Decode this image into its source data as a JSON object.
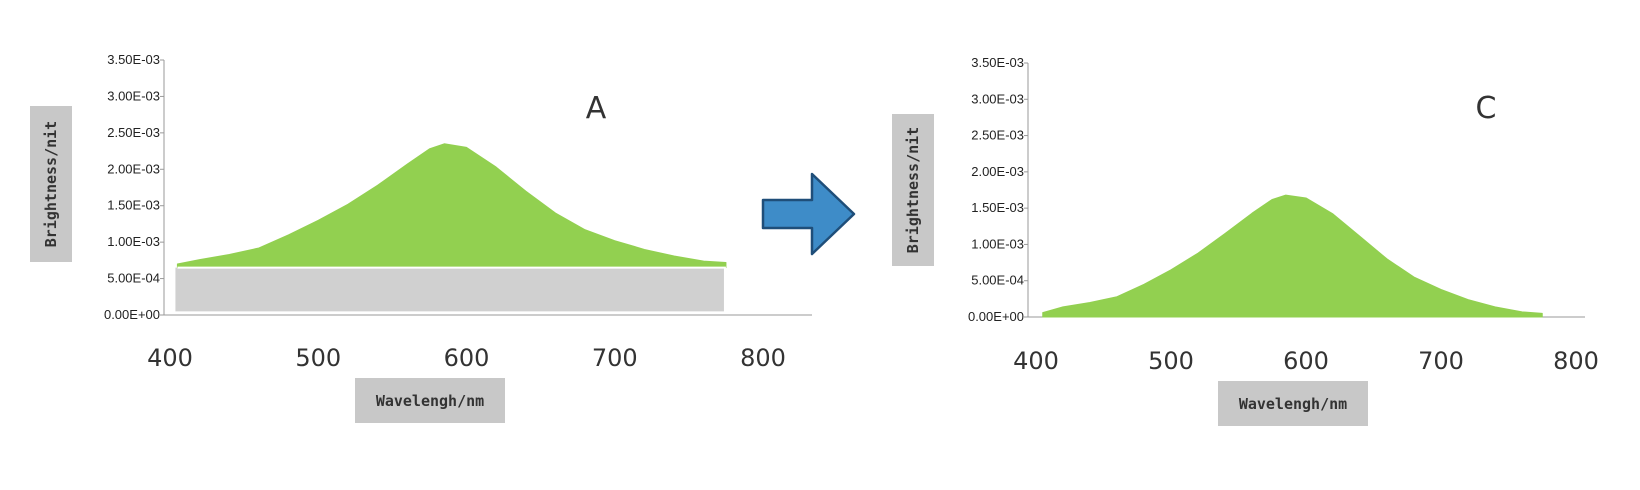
{
  "colors": {
    "fill": "#92D050",
    "label_box": "#C8C8C8",
    "baseline_band": "#D0D0D0",
    "arrow": "#3E8CC8",
    "arrow_edge": "#1F4E79",
    "axis": "#999999"
  },
  "arrow": {
    "direction": "right",
    "icon": "arrow-right-icon"
  },
  "chart_data": [
    {
      "type": "area",
      "panel_label": "A",
      "xlabel": "Wavelengh/nm",
      "ylabel": "Brightness/nit",
      "xlim": [
        400,
        800
      ],
      "ylim": [
        0,
        0.0035
      ],
      "x_ticks": [
        "400",
        "500",
        "600",
        "700",
        "800"
      ],
      "y_ticks": [
        "0.00E+00",
        "5.00E-04",
        "1.00E-03",
        "1.50E-03",
        "2.00E-03",
        "2.50E-03",
        "3.00E-03",
        "3.50E-03"
      ],
      "baseline_band": {
        "from": 5e-05,
        "to": 0.00065
      },
      "x": [
        405,
        420,
        440,
        460,
        480,
        500,
        520,
        540,
        560,
        575,
        585,
        600,
        620,
        640,
        660,
        680,
        700,
        720,
        740,
        760,
        775
      ],
      "y": [
        0.0007,
        0.00076,
        0.00083,
        0.00092,
        0.0011,
        0.0013,
        0.00152,
        0.00178,
        0.00207,
        0.00228,
        0.00235,
        0.0023,
        0.00203,
        0.0017,
        0.0014,
        0.00117,
        0.00102,
        0.0009,
        0.00081,
        0.00074,
        0.00072
      ]
    },
    {
      "type": "area",
      "panel_label": "C",
      "xlabel": "Wavelengh/nm",
      "ylabel": "Brightness/nit",
      "xlim": [
        400,
        800
      ],
      "ylim": [
        0,
        0.0035
      ],
      "x_ticks": [
        "400",
        "500",
        "600",
        "700",
        "800"
      ],
      "y_ticks": [
        "0.00E+00",
        "5.00E-04",
        "1.00E-03",
        "1.50E-03",
        "2.00E-03",
        "2.50E-03",
        "3.00E-03",
        "3.50E-03"
      ],
      "x": [
        405,
        420,
        440,
        460,
        480,
        500,
        520,
        540,
        560,
        575,
        585,
        600,
        620,
        640,
        660,
        680,
        700,
        720,
        740,
        760,
        775
      ],
      "y": [
        6e-05,
        0.00014,
        0.0002,
        0.00028,
        0.00045,
        0.00065,
        0.00088,
        0.00115,
        0.00143,
        0.00162,
        0.00168,
        0.00164,
        0.00142,
        0.00111,
        0.0008,
        0.00055,
        0.00038,
        0.00024,
        0.00014,
        7e-05,
        5e-05
      ]
    }
  ]
}
